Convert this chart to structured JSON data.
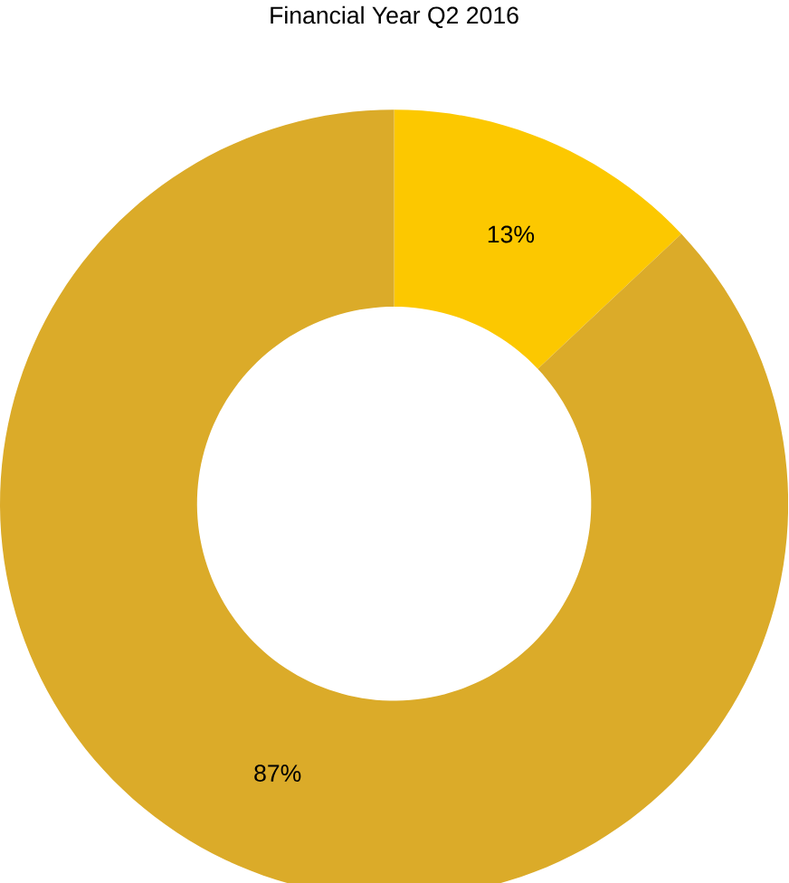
{
  "chart_data": {
    "type": "donut",
    "title": "Financial Year Q2 2016",
    "categories": [
      null,
      null
    ],
    "values": [
      13,
      87
    ],
    "colors": [
      "#fcc800",
      "#dbab29"
    ],
    "value_labels": [
      "13%",
      "87%"
    ]
  }
}
